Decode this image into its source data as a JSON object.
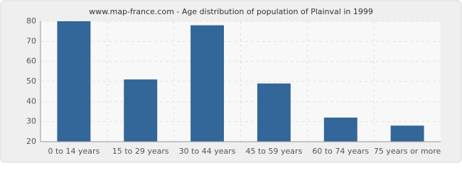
{
  "chart_data": {
    "type": "bar",
    "title": "www.map-france.com - Age distribution of population of Plainval in 1999",
    "categories": [
      "0 to 14 years",
      "15 to 29 years",
      "30 to 44 years",
      "45 to 59 years",
      "60 to 74 years",
      "75 years or more"
    ],
    "values": [
      80,
      51,
      78,
      49,
      32,
      28
    ],
    "color": "#336699",
    "ylim": [
      20,
      80
    ],
    "yticks": [
      20,
      30,
      40,
      50,
      60,
      70,
      80
    ],
    "grid": true
  }
}
